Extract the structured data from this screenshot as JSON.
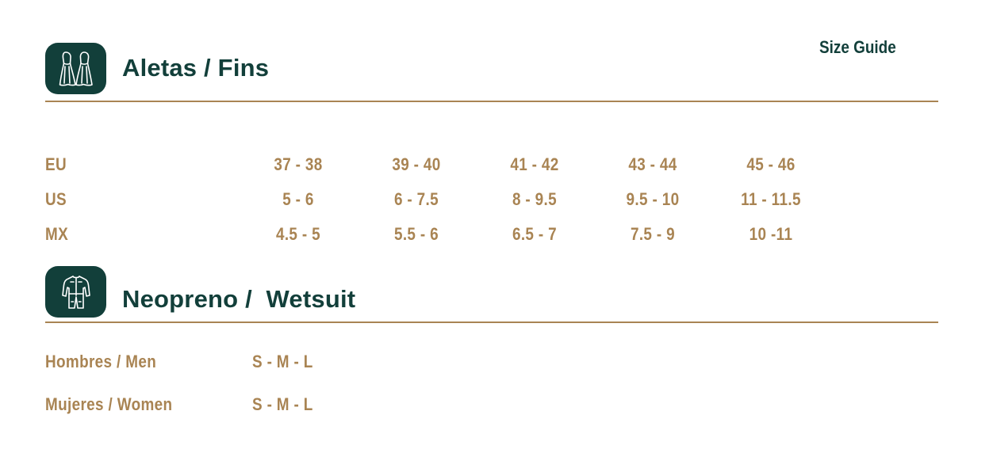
{
  "header": {
    "size_guide_label": "Size Guide"
  },
  "colors": {
    "brand_green": "#123f3a",
    "accent_gold": "#a98453",
    "background": "#ffffff"
  },
  "fins": {
    "icon": "fins-icon",
    "title": "Aletas / Fins",
    "rows": [
      {
        "label": "EU",
        "values": [
          "37 - 38",
          "39 - 40",
          "41 - 42",
          "43 - 44",
          "45 - 46"
        ]
      },
      {
        "label": "US",
        "values": [
          "5 - 6",
          "6 - 7.5",
          "8 - 9.5",
          "9.5 - 10",
          "11 - 11.5"
        ]
      },
      {
        "label": "MX",
        "values": [
          "4.5 - 5",
          "5.5 - 6",
          "6.5 - 7",
          "7.5 - 9",
          "10 -11"
        ]
      }
    ]
  },
  "wetsuit": {
    "icon": "wetsuit-icon",
    "title": "Neopreno /  Wetsuit",
    "rows": [
      {
        "label": "Hombres / Men",
        "value": "S - M - L"
      },
      {
        "label": "Mujeres / Women",
        "value": "S - M - L"
      }
    ]
  }
}
